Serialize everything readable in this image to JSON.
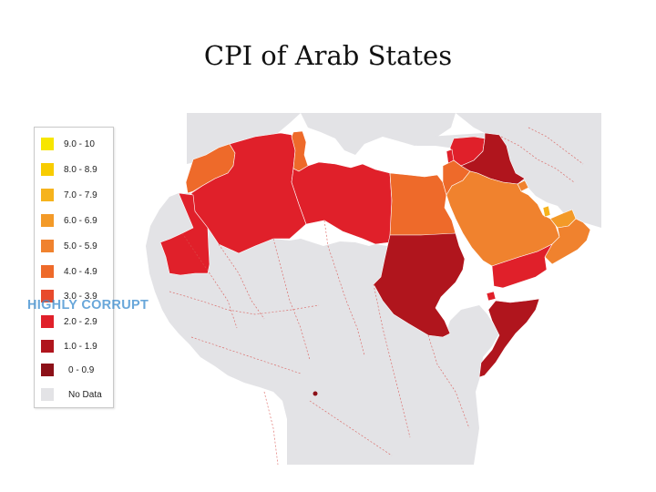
{
  "title": "CPI of Arab States",
  "legend": {
    "items": [
      {
        "label": "9.0 - 10",
        "color": "#f7e600"
      },
      {
        "label": "8.0 - 8.9",
        "color": "#f8cc00"
      },
      {
        "label": "7.0 - 7.9",
        "color": "#f6b31c"
      },
      {
        "label": "6.0 - 6.9",
        "color": "#f39a28"
      },
      {
        "label": "5.0 - 5.9",
        "color": "#f0822e"
      },
      {
        "label": "4.0 - 4.9",
        "color": "#ee6a2a"
      },
      {
        "label": "3.0 - 3.9",
        "color": "#e84a2c"
      },
      {
        "label": "2.0 - 2.9",
        "color": "#e0202a"
      },
      {
        "label": "1.0 - 1.9",
        "color": "#b0151d"
      },
      {
        "label": "0 - 0.9",
        "color": "#8c1018"
      },
      {
        "label": "No Data",
        "color": "#e3e3e6"
      }
    ]
  },
  "annotation": "HIGHLY CORRUPT",
  "colors": {
    "ocean": "#ffffff",
    "land_no_data": "#e3e3e6",
    "border": "#d9534f"
  },
  "map_regions": [
    {
      "name": "Morocco",
      "band": "4.0 - 4.9"
    },
    {
      "name": "Western Sahara",
      "band": "No Data"
    },
    {
      "name": "Algeria",
      "band": "2.0 - 2.9"
    },
    {
      "name": "Tunisia",
      "band": "4.0 - 4.9"
    },
    {
      "name": "Libya",
      "band": "2.0 - 2.9"
    },
    {
      "name": "Mauritania",
      "band": "2.0 - 2.9"
    },
    {
      "name": "Egypt",
      "band": "4.0 - 4.9"
    },
    {
      "name": "Sudan",
      "band": "1.0 - 1.9"
    },
    {
      "name": "Syria",
      "band": "2.0 - 2.9"
    },
    {
      "name": "Iraq",
      "band": "1.0 - 1.9"
    },
    {
      "name": "Jordan",
      "band": "4.0 - 4.9"
    },
    {
      "name": "Lebanon",
      "band": "2.0 - 2.9"
    },
    {
      "name": "Saudi Arabia",
      "band": "5.0 - 5.9"
    },
    {
      "name": "Kuwait",
      "band": "5.0 - 5.9"
    },
    {
      "name": "Qatar",
      "band": "7.0 - 7.9"
    },
    {
      "name": "United Arab Emirates",
      "band": "6.0 - 6.9"
    },
    {
      "name": "Oman",
      "band": "5.0 - 5.9"
    },
    {
      "name": "Yemen",
      "band": "2.0 - 2.9"
    },
    {
      "name": "Djibouti",
      "band": "2.0 - 2.9"
    },
    {
      "name": "Somalia",
      "band": "1.0 - 1.9"
    },
    {
      "name": "Comoros",
      "band": "1.0 - 1.9"
    }
  ]
}
